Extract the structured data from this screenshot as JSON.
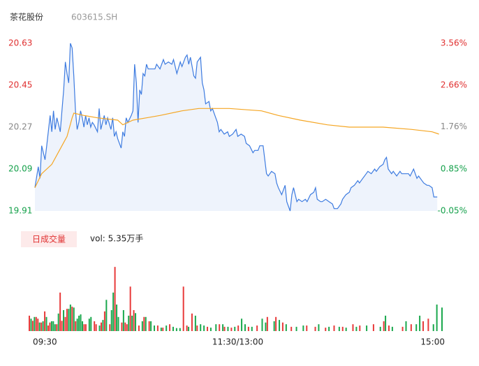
{
  "chart_data": {
    "type": "line",
    "title": "茶花股份",
    "subtitle": "603615.SH",
    "volume_label": "日成交量",
    "volume_text": "vol: 5.35万手",
    "xlim": [
      0,
      240
    ],
    "xticks": [
      {
        "value": 0,
        "label": "09:30"
      },
      {
        "value": 120,
        "label": "11:30/13:00"
      },
      {
        "value": 240,
        "label": "15:00"
      }
    ],
    "ylim": [
      19.91,
      20.63
    ],
    "yticks": [
      20.63,
      20.45,
      20.27,
      20.09,
      19.91
    ],
    "y2lim": [
      -0.05,
      3.56
    ],
    "y2ticks": [
      {
        "value": 3.56,
        "label": "3.56%"
      },
      {
        "value": 2.66,
        "label": "2.66%"
      },
      {
        "value": 1.76,
        "label": "1.76%"
      },
      {
        "value": 0.85,
        "label": "0.85%"
      },
      {
        "value": -0.05,
        "label": "-0.05%"
      }
    ],
    "ytick_colors": [
      "#e03030",
      "#e03030",
      "#888888",
      "#14a04a",
      "#14a04a"
    ],
    "area_color": "#eef3fc",
    "series": [
      {
        "color": "#3d7be0",
        "x": [
          0,
          2,
          3,
          4,
          6,
          7,
          9,
          10,
          11,
          12,
          13,
          15,
          16,
          17,
          18,
          19,
          20,
          21,
          22,
          23,
          24,
          25,
          26,
          27,
          28,
          29,
          30,
          31,
          32,
          33,
          34,
          35,
          37,
          38,
          39,
          41,
          42,
          43,
          45,
          46,
          47,
          48,
          49,
          51,
          52,
          53,
          54,
          55,
          57,
          58,
          59,
          60,
          61,
          62,
          63,
          64,
          65,
          66,
          67,
          69,
          71,
          72,
          74,
          76,
          77,
          79,
          81,
          82,
          84,
          86,
          87,
          89,
          90,
          91,
          92,
          94,
          95,
          96,
          98,
          99,
          100,
          101,
          103,
          104,
          105,
          107,
          108,
          109,
          110,
          112,
          114,
          115,
          117,
          119,
          120,
          122,
          124,
          125,
          127,
          129,
          130,
          132,
          133,
          135,
          137,
          138,
          140,
          142,
          143,
          144,
          146,
          148,
          149,
          151,
          152,
          153,
          154,
          155,
          156,
          158,
          160,
          161,
          163,
          165,
          166,
          167,
          169,
          170,
          172,
          174,
          176,
          177,
          179,
          181,
          182,
          184,
          186,
          187,
          189,
          191,
          192,
          194,
          196,
          197,
          199,
          201,
          202,
          204,
          206,
          207,
          208,
          209,
          211,
          212,
          214,
          216,
          217,
          219,
          221,
          222,
          224,
          226,
          227,
          229,
          230,
          232,
          233,
          235,
          236,
          238
        ],
        "values": [
          20.01,
          20.1,
          20.05,
          20.19,
          20.13,
          20.19,
          20.32,
          20.25,
          20.34,
          20.26,
          20.31,
          20.25,
          20.34,
          20.43,
          20.55,
          20.5,
          20.46,
          20.63,
          20.61,
          20.49,
          20.34,
          20.26,
          20.29,
          20.34,
          20.31,
          20.27,
          20.32,
          20.28,
          20.31,
          20.27,
          20.29,
          20.28,
          20.25,
          20.35,
          20.26,
          20.32,
          20.28,
          20.31,
          20.26,
          20.31,
          20.23,
          20.25,
          20.22,
          20.18,
          20.25,
          20.23,
          20.31,
          20.29,
          20.32,
          20.34,
          20.54,
          20.46,
          20.29,
          20.43,
          20.41,
          20.5,
          20.49,
          20.54,
          20.52,
          20.52,
          20.52,
          20.54,
          20.52,
          20.56,
          20.54,
          20.55,
          20.54,
          20.56,
          20.5,
          20.55,
          20.53,
          20.57,
          20.58,
          20.54,
          20.57,
          20.49,
          20.48,
          20.55,
          20.57,
          20.46,
          20.43,
          20.37,
          20.38,
          20.34,
          20.35,
          20.31,
          20.29,
          20.25,
          20.26,
          20.24,
          20.25,
          20.23,
          20.24,
          20.26,
          20.23,
          20.24,
          20.23,
          20.2,
          20.19,
          20.16,
          20.17,
          20.17,
          20.19,
          20.19,
          20.07,
          20.06,
          20.08,
          20.07,
          20.03,
          20.01,
          19.98,
          20.02,
          19.95,
          19.91,
          19.98,
          20.01,
          19.98,
          19.95,
          19.96,
          19.95,
          19.96,
          19.95,
          19.98,
          19.99,
          20.01,
          19.96,
          19.95,
          19.95,
          19.96,
          19.95,
          19.94,
          19.92,
          19.92,
          19.94,
          19.96,
          19.98,
          19.99,
          20.01,
          20.02,
          20.04,
          20.03,
          20.05,
          20.07,
          20.08,
          20.07,
          20.09,
          20.08,
          20.1,
          20.11,
          20.13,
          20.14,
          20.09,
          20.07,
          20.08,
          20.06,
          20.08,
          20.07,
          20.07,
          20.07,
          20.06,
          20.09,
          20.05,
          20.06,
          20.04,
          20.03,
          20.02,
          20.02,
          20.01,
          19.97,
          19.97
        ]
      },
      {
        "color": "#f5a623",
        "x": [
          0,
          4,
          10,
          16,
          19,
          22,
          23,
          29,
          37,
          49,
          52,
          58,
          66,
          74,
          87,
          97,
          103,
          115,
          134,
          144,
          157,
          173,
          186,
          206,
          223,
          235,
          239
        ],
        "values": [
          20.01,
          20.07,
          20.11,
          20.19,
          20.23,
          20.31,
          20.33,
          20.32,
          20.31,
          20.3,
          20.28,
          20.3,
          20.31,
          20.32,
          20.34,
          20.35,
          20.35,
          20.35,
          20.34,
          20.32,
          20.3,
          20.28,
          20.27,
          20.27,
          20.26,
          20.25,
          20.24
        ]
      }
    ],
    "volume_xlim": [
      0,
      241
    ],
    "volume_ylim": [
      0,
      1600
    ],
    "volume_series": [
      {
        "color": "#e83a3a",
        "x": [
          0,
          2,
          4,
          5,
          7,
          9,
          11,
          12,
          16,
          18,
          19,
          21,
          22,
          25,
          27,
          32,
          33,
          38,
          39,
          42,
          44,
          47,
          50,
          54,
          56,
          57,
          59,
          61,
          64,
          67,
          70,
          75,
          78,
          82,
          90,
          92,
          95,
          98,
          104,
          111,
          114,
          118,
          122,
          128,
          133,
          139,
          144,
          148,
          153,
          162,
          167,
          173,
          178,
          183,
          189,
          193,
          201,
          207,
          210,
          218,
          223,
          230,
          233
        ],
        "values": [
          360,
          240,
          330,
          290,
          200,
          460,
          130,
          200,
          160,
          900,
          240,
          330,
          520,
          570,
          230,
          160,
          160,
          230,
          160,
          200,
          460,
          160,
          1500,
          200,
          200,
          160,
          1040,
          490,
          130,
          330,
          230,
          130,
          80,
          160,
          1040,
          130,
          410,
          130,
          100,
          160,
          100,
          80,
          130,
          100,
          130,
          330,
          330,
          200,
          100,
          130,
          100,
          80,
          130,
          100,
          160,
          130,
          160,
          230,
          130,
          100,
          160,
          230,
          290
        ]
      },
      {
        "color": "#1aa84d",
        "x": [
          1,
          3,
          6,
          8,
          10,
          13,
          14,
          15,
          17,
          20,
          23,
          24,
          26,
          28,
          29,
          30,
          31,
          35,
          36,
          41,
          43,
          45,
          48,
          49,
          51,
          52,
          55,
          58,
          60,
          62,
          66,
          68,
          71,
          73,
          77,
          80,
          84,
          86,
          88,
          93,
          97,
          100,
          102,
          106,
          109,
          113,
          116,
          120,
          124,
          126,
          130,
          136,
          138,
          143,
          146,
          150,
          156,
          160,
          169,
          175,
          181,
          185,
          191,
          197,
          205,
          208,
          212,
          220,
          226,
          228,
          236,
          238,
          241
        ],
        "values": [
          290,
          330,
          200,
          230,
          330,
          230,
          230,
          160,
          410,
          490,
          520,
          620,
          550,
          290,
          360,
          390,
          230,
          290,
          330,
          130,
          260,
          730,
          490,
          900,
          620,
          330,
          490,
          360,
          360,
          420,
          230,
          330,
          230,
          130,
          80,
          130,
          100,
          70,
          70,
          100,
          360,
          160,
          130,
          80,
          160,
          160,
          100,
          100,
          290,
          160,
          100,
          290,
          200,
          230,
          260,
          160,
          100,
          130,
          160,
          100,
          100,
          80,
          100,
          130,
          100,
          360,
          100,
          230,
          160,
          360,
          160,
          620,
          550
        ]
      }
    ]
  }
}
